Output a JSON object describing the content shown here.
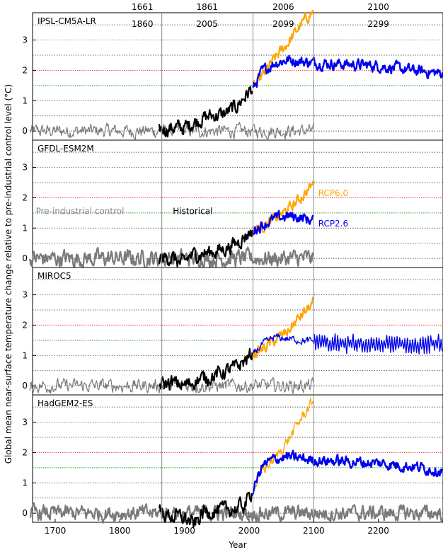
{
  "chart_data": {
    "type": "line",
    "xlabel": "Year",
    "ylabel": "Global mean near-surface temperature change relative to pre-industrial control level (°C)",
    "xlim": [
      1665,
      2300
    ],
    "xticks": [
      1700,
      1800,
      1900,
      2000,
      2100,
      2200
    ],
    "ylim": [
      -0.3,
      3.9
    ],
    "yticks": [
      0,
      1,
      2,
      3
    ],
    "grid": "dotted horizontal lines every 0.5 °C",
    "reference_lines": [
      {
        "y": 2.0,
        "color": "#ff3b3b"
      },
      {
        "y": 1.5,
        "color": "#2ca02c"
      }
    ],
    "period_lines": [
      1865,
      2006,
      2100
    ],
    "period_labels": [
      {
        "x": 1835,
        "top": "1661",
        "bottom": "1860"
      },
      {
        "x": 1935,
        "top": "1861",
        "bottom": "2005"
      },
      {
        "x": 2053,
        "top": "2006",
        "bottom": "2099"
      },
      {
        "x": 2200,
        "top": "2100",
        "bottom": "2299"
      }
    ],
    "annotations": [
      {
        "text": "Pre-industrial control",
        "panel": 1,
        "x": 1670,
        "y": 1.55,
        "color": "#888888"
      },
      {
        "text": "Historical",
        "panel": 1,
        "x": 1882,
        "y": 1.55,
        "color": "#000000"
      },
      {
        "text": "RCP6.0",
        "panel": 1,
        "x": 2107,
        "y": 2.15,
        "color": "#ffa500"
      },
      {
        "text": "RCP2.6",
        "panel": 1,
        "x": 2107,
        "y": 1.15,
        "color": "#0000ee"
      }
    ],
    "colors": {
      "control": "#7a7a7a",
      "historical": "#000000",
      "rcp60": "#ffa500",
      "rcp26": "#0000ee",
      "period_line": "#888888",
      "grid": "#000000"
    },
    "panels": [
      {
        "name": "IPSL-CM5A-LR",
        "control_years": [
          1661,
          2100
        ],
        "historical_years": [
          1861,
          2005
        ],
        "historical": [
          [
            1861,
            0.05
          ],
          [
            1880,
            0.1
          ],
          [
            1900,
            0.12
          ],
          [
            1920,
            0.35
          ],
          [
            1940,
            0.5
          ],
          [
            1960,
            0.55
          ],
          [
            1980,
            0.8
          ],
          [
            2000,
            1.3
          ],
          [
            2005,
            1.4
          ]
        ],
        "rcp60": [
          [
            2006,
            1.4
          ],
          [
            2020,
            1.8
          ],
          [
            2040,
            2.4
          ],
          [
            2060,
            2.9
          ],
          [
            2080,
            3.5
          ],
          [
            2099,
            3.95
          ]
        ],
        "rcp26": [
          [
            2006,
            1.4
          ],
          [
            2020,
            1.95
          ],
          [
            2040,
            2.25
          ],
          [
            2060,
            2.35
          ],
          [
            2080,
            2.3
          ],
          [
            2100,
            2.25
          ],
          [
            2150,
            2.2
          ],
          [
            2200,
            2.15
          ],
          [
            2250,
            2.0
          ],
          [
            2299,
            1.9
          ]
        ]
      },
      {
        "name": "GFDL-ESM2M",
        "control_years": [
          1661,
          2100
        ],
        "historical_years": [
          1861,
          2005
        ],
        "historical": [
          [
            1861,
            0.0
          ],
          [
            1880,
            0.05
          ],
          [
            1895,
            -0.2
          ],
          [
            1910,
            0.1
          ],
          [
            1940,
            0.2
          ],
          [
            1960,
            0.3
          ],
          [
            1980,
            0.5
          ],
          [
            2000,
            0.85
          ],
          [
            2005,
            0.95
          ]
        ],
        "rcp60": [
          [
            2006,
            0.95
          ],
          [
            2020,
            1.05
          ],
          [
            2040,
            1.3
          ],
          [
            2060,
            1.6
          ],
          [
            2080,
            2.0
          ],
          [
            2099,
            2.45
          ]
        ],
        "rcp26": [
          [
            2006,
            0.95
          ],
          [
            2020,
            1.1
          ],
          [
            2040,
            1.3
          ],
          [
            2060,
            1.4
          ],
          [
            2080,
            1.35
          ],
          [
            2099,
            1.25
          ]
        ]
      },
      {
        "name": "MIROC5",
        "control_years": [
          1661,
          2100
        ],
        "historical_years": [
          1861,
          2005
        ],
        "historical": [
          [
            1861,
            0.05
          ],
          [
            1880,
            0.1
          ],
          [
            1900,
            0.0
          ],
          [
            1920,
            0.2
          ],
          [
            1940,
            0.3
          ],
          [
            1960,
            0.45
          ],
          [
            1980,
            0.6
          ],
          [
            2000,
            0.95
          ],
          [
            2005,
            1.05
          ]
        ],
        "rcp60": [
          [
            2006,
            1.05
          ],
          [
            2020,
            1.2
          ],
          [
            2040,
            1.5
          ],
          [
            2060,
            1.8
          ],
          [
            2080,
            2.3
          ],
          [
            2099,
            2.7
          ]
        ],
        "rcp26": [
          [
            2006,
            1.05
          ],
          [
            2020,
            1.35
          ],
          [
            2040,
            1.6
          ],
          [
            2060,
            1.55
          ],
          [
            2080,
            1.5
          ],
          [
            2100,
            1.45
          ],
          [
            2150,
            1.35
          ],
          [
            2200,
            1.35
          ],
          [
            2250,
            1.35
          ],
          [
            2299,
            1.35
          ]
        ]
      },
      {
        "name": "HadGEM2-ES",
        "control_years": [
          1661,
          2299
        ],
        "historical_years": [
          1861,
          2005
        ],
        "historical": [
          [
            1861,
            0.0
          ],
          [
            1880,
            -0.1
          ],
          [
            1900,
            -0.15
          ],
          [
            1915,
            -0.4
          ],
          [
            1930,
            0.05
          ],
          [
            1960,
            0.1
          ],
          [
            1980,
            0.15
          ],
          [
            1995,
            0.3
          ],
          [
            2005,
            0.75
          ]
        ],
        "rcp60": [
          [
            2006,
            0.75
          ],
          [
            2020,
            1.4
          ],
          [
            2040,
            1.8
          ],
          [
            2060,
            2.4
          ],
          [
            2080,
            3.1
          ],
          [
            2099,
            3.7
          ]
        ],
        "rcp26": [
          [
            2006,
            0.75
          ],
          [
            2020,
            1.55
          ],
          [
            2040,
            1.8
          ],
          [
            2060,
            1.85
          ],
          [
            2080,
            1.8
          ],
          [
            2100,
            1.75
          ],
          [
            2150,
            1.7
          ],
          [
            2200,
            1.65
          ],
          [
            2250,
            1.55
          ],
          [
            2299,
            1.4
          ]
        ]
      }
    ]
  }
}
